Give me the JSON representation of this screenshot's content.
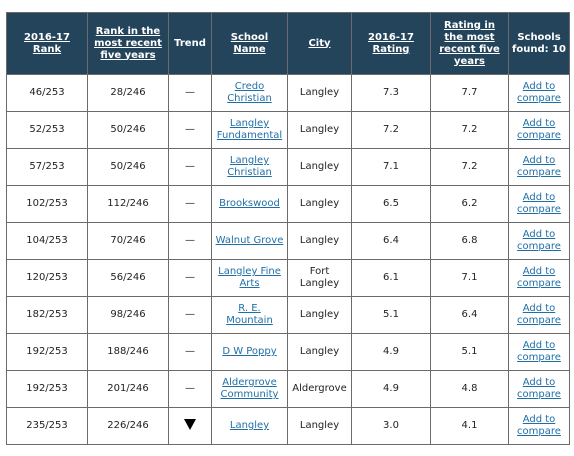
{
  "table": {
    "headers": {
      "rank": "2016-17 Rank",
      "rank_five": "Rank in the most recent five years",
      "trend": "Trend",
      "school_name": "School Name",
      "city": "City",
      "rating": "2016-17 Rating",
      "rating_five": "Rating in the most recent five years",
      "schools_found": "Schools found: 10"
    },
    "rows": [
      {
        "rank": "46/253",
        "rank_five": "28/246",
        "trend": "—",
        "school": "Credo Christian",
        "city": "Langley",
        "rating": "7.3",
        "rating_five": "7.7",
        "compare": "Add to compare"
      },
      {
        "rank": "52/253",
        "rank_five": "50/246",
        "trend": "—",
        "school": "Langley Fundamental",
        "city": "Langley",
        "rating": "7.2",
        "rating_five": "7.2",
        "compare": "Add to compare"
      },
      {
        "rank": "57/253",
        "rank_five": "50/246",
        "trend": "—",
        "school": "Langley Christian",
        "city": "Langley",
        "rating": "7.1",
        "rating_five": "7.2",
        "compare": "Add to compare"
      },
      {
        "rank": "102/253",
        "rank_five": "112/246",
        "trend": "—",
        "school": "Brookswood",
        "city": "Langley",
        "rating": "6.5",
        "rating_five": "6.2",
        "compare": "Add to compare"
      },
      {
        "rank": "104/253",
        "rank_five": "70/246",
        "trend": "—",
        "school": "Walnut Grove",
        "city": "Langley",
        "rating": "6.4",
        "rating_five": "6.8",
        "compare": "Add to compare"
      },
      {
        "rank": "120/253",
        "rank_five": "56/246",
        "trend": "—",
        "school": "Langley Fine Arts",
        "city": "Fort Langley",
        "rating": "6.1",
        "rating_five": "7.1",
        "compare": "Add to compare"
      },
      {
        "rank": "182/253",
        "rank_five": "98/246",
        "trend": "—",
        "school": "R. E. Mountain",
        "city": "Langley",
        "rating": "5.1",
        "rating_five": "6.4",
        "compare": "Add to compare"
      },
      {
        "rank": "192/253",
        "rank_five": "188/246",
        "trend": "—",
        "school": "D W Poppy",
        "city": "Langley",
        "rating": "4.9",
        "rating_five": "5.1",
        "compare": "Add to compare"
      },
      {
        "rank": "192/253",
        "rank_five": "201/246",
        "trend": "—",
        "school": "Aldergrove Community",
        "city": "Aldergrove",
        "rating": "4.9",
        "rating_five": "4.8",
        "compare": "Add to compare"
      },
      {
        "rank": "235/253",
        "rank_five": "226/246",
        "trend": "down",
        "school": "Langley",
        "city": "Langley",
        "rating": "3.0",
        "rating_five": "4.1",
        "compare": "Add to compare"
      }
    ]
  }
}
